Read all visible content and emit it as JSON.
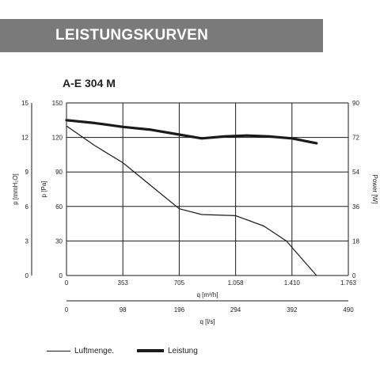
{
  "banner": {
    "title": "LEISTUNGSKURVEN"
  },
  "chart_data": {
    "type": "line",
    "title": "A-E 304 M",
    "axes": {
      "y_left_outer": {
        "label": "p [mmH₂O]",
        "ticks": [
          "15",
          "12",
          "9",
          "6",
          "3",
          "0"
        ],
        "range": [
          0,
          15
        ]
      },
      "y_left_inner": {
        "label": "p [Pa]",
        "ticks": [
          "150",
          "120",
          "90",
          "60",
          "30",
          "0"
        ],
        "range": [
          0,
          150
        ]
      },
      "y_right": {
        "label": "Power [W]",
        "ticks": [
          "90",
          "72",
          "54",
          "36",
          "18",
          "0"
        ],
        "range": [
          0,
          90
        ]
      },
      "x_primary": {
        "label": "q [m³/h]",
        "ticks": [
          "0",
          "353",
          "705",
          "1.058",
          "1.410",
          "1.763"
        ],
        "range": [
          0,
          1763
        ]
      },
      "x_secondary": {
        "label": "q [l/s]",
        "ticks": [
          "0",
          "98",
          "196",
          "294",
          "392",
          "490"
        ],
        "range": [
          0,
          490
        ]
      }
    },
    "grid": true,
    "series": [
      {
        "name": "Luftmenge.",
        "axis": "y_left_inner",
        "x": [
          0,
          176,
          353,
          529,
          705,
          846,
          1058,
          1234,
          1375,
          1564
        ],
        "y": [
          130,
          113,
          98,
          78,
          58,
          53,
          52,
          43,
          30,
          0
        ]
      },
      {
        "name": "Leistung",
        "axis": "y_right",
        "x": [
          0,
          176,
          353,
          529,
          705,
          846,
          987,
          1128,
          1269,
          1410,
          1564
        ],
        "y": [
          81,
          79.5,
          77.5,
          76,
          73.5,
          71.5,
          72.5,
          73,
          72.5,
          71.5,
          69
        ]
      }
    ]
  },
  "legend": [
    {
      "label": "Luftmenge.",
      "style": "thin"
    },
    {
      "label": "Leistung",
      "style": "thick"
    }
  ],
  "colors": {
    "banner": "#7a7a7a",
    "banner_text": "#ffffff",
    "lines": "#1a1a1a",
    "grid": "#1a1a1a"
  }
}
